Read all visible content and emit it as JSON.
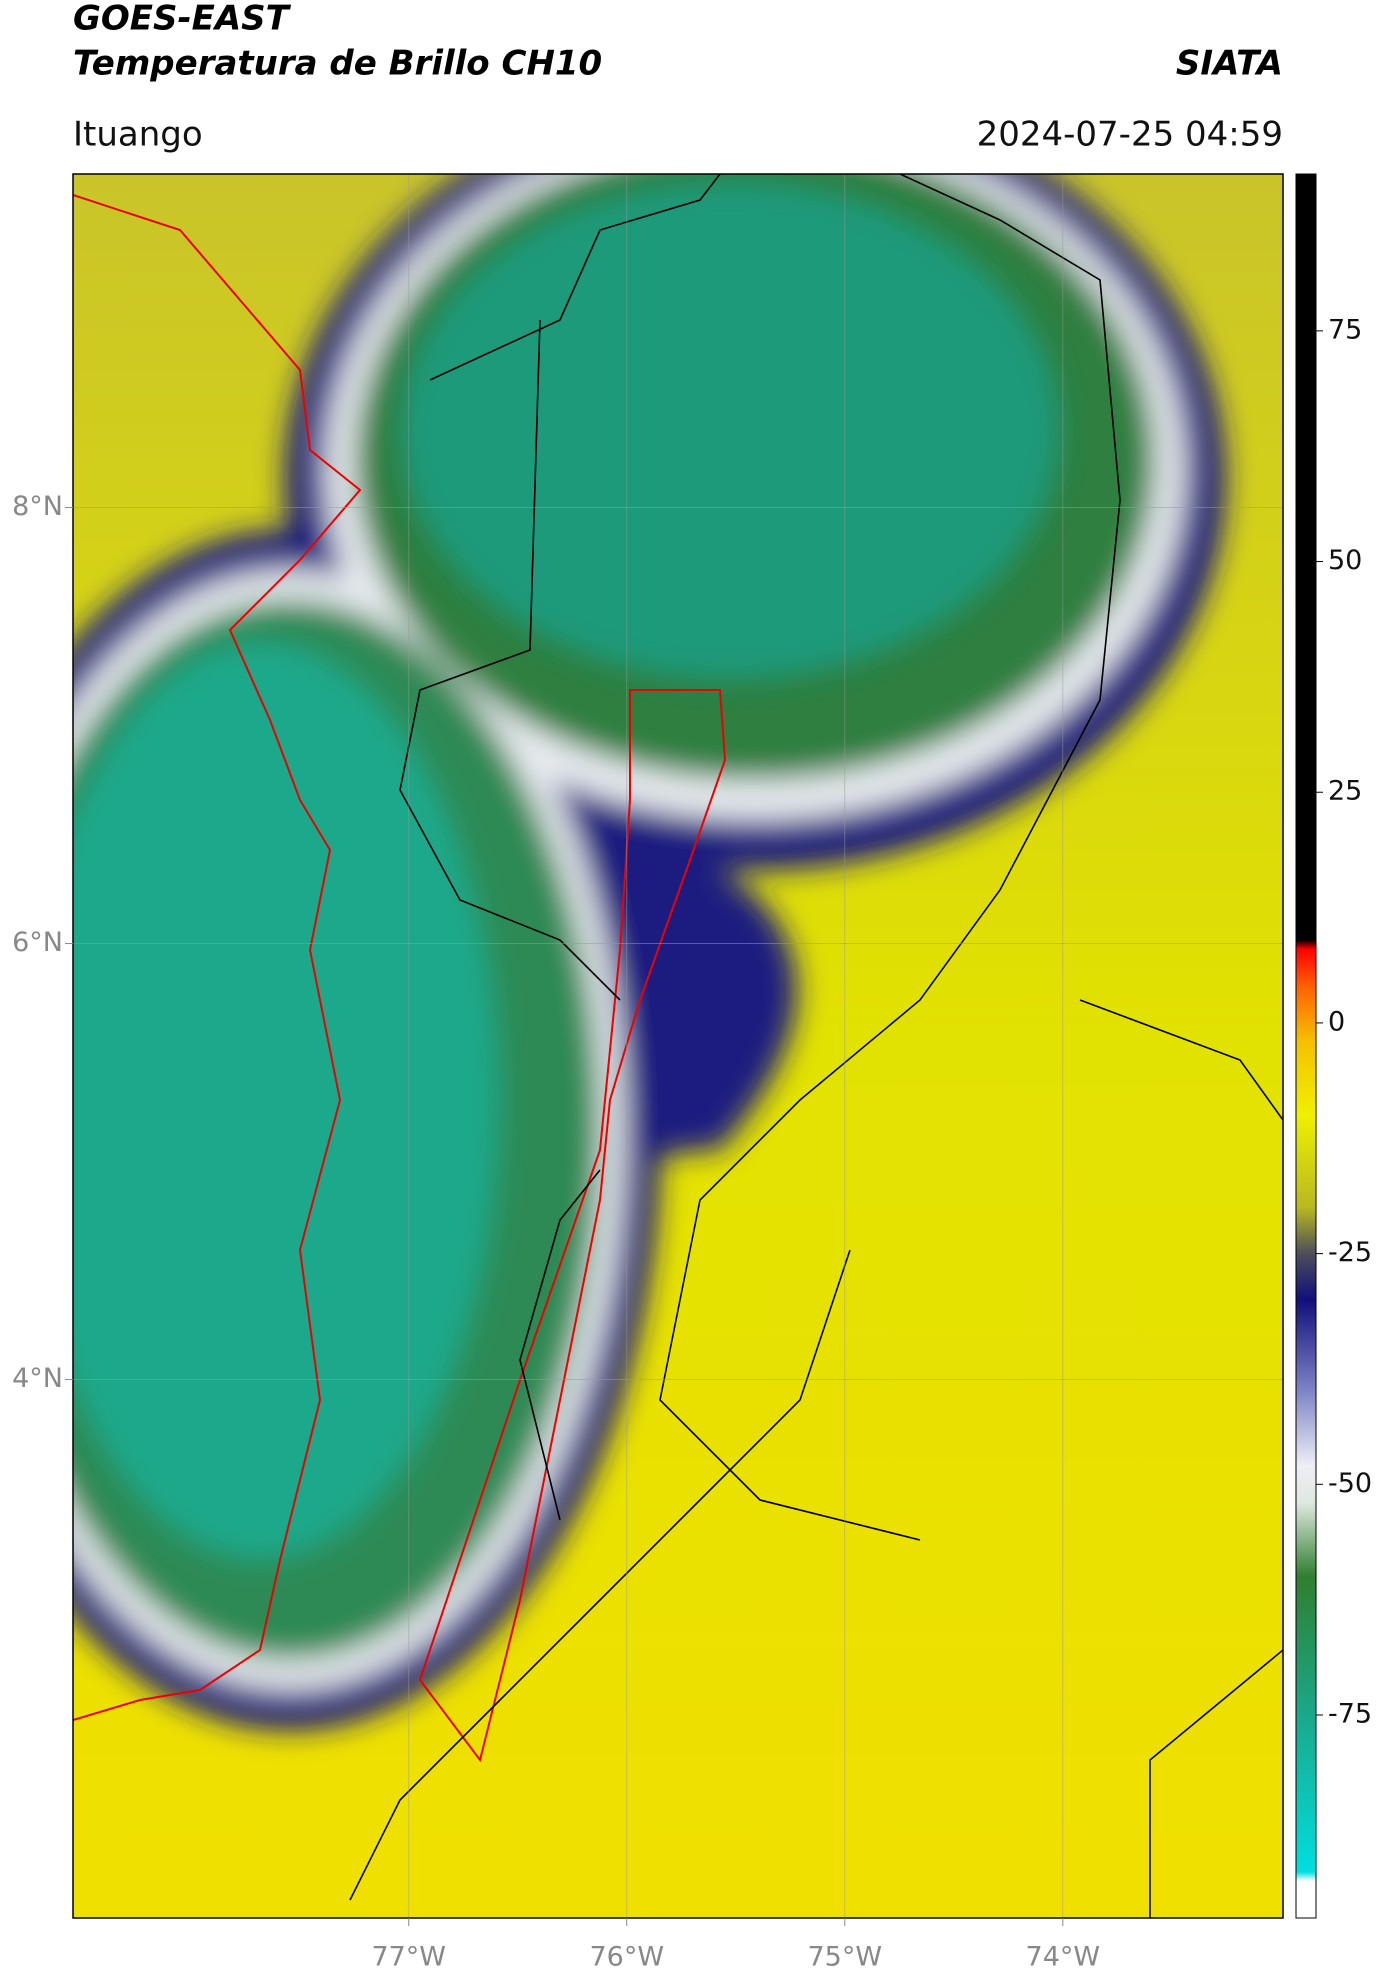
{
  "header": {
    "title": "GOES-EAST",
    "subtitle": "Temperatura de Brillo CH10",
    "brand": "SIATA",
    "location": "Ituango",
    "timestamp": "2024-07-25 04:59"
  },
  "map": {
    "xlim": [
      -78.54,
      -72.99
    ],
    "ylim": [
      1.53,
      9.53
    ],
    "xticks": [
      {
        "value": -77,
        "label": "77°W"
      },
      {
        "value": -76,
        "label": "76°W"
      },
      {
        "value": -75,
        "label": "75°W"
      },
      {
        "value": -74,
        "label": "74°W"
      }
    ],
    "yticks": [
      {
        "value": 4,
        "label": "4°N"
      },
      {
        "value": 6,
        "label": "6°N"
      },
      {
        "value": 8,
        "label": "8°N"
      }
    ],
    "grid": true
  },
  "colorbar": {
    "lim": [
      -97,
      92
    ],
    "ticks": [
      -75,
      -50,
      -25,
      0,
      25,
      50,
      75
    ],
    "colormap": [
      {
        "value": -97,
        "color": "#ffffff"
      },
      {
        "value": -93,
        "color": "#ffffff"
      },
      {
        "value": -92,
        "color": "#00dede"
      },
      {
        "value": -75,
        "color": "#1aa88a"
      },
      {
        "value": -60,
        "color": "#2f7f30"
      },
      {
        "value": -52,
        "color": "#dfe8df"
      },
      {
        "value": -48,
        "color": "#eeeef6"
      },
      {
        "value": -40,
        "color": "#7f86c6"
      },
      {
        "value": -30,
        "color": "#10107a"
      },
      {
        "value": -25,
        "color": "#4d4d5c"
      },
      {
        "value": -20,
        "color": "#b8b820"
      },
      {
        "value": -10,
        "color": "#f0f000"
      },
      {
        "value": -2,
        "color": "#f5c000"
      },
      {
        "value": 4,
        "color": "#ff6000"
      },
      {
        "value": 8,
        "color": "#ff0000"
      },
      {
        "value": 9,
        "color": "#000000"
      },
      {
        "value": 92,
        "color": "#000000"
      }
    ]
  }
}
